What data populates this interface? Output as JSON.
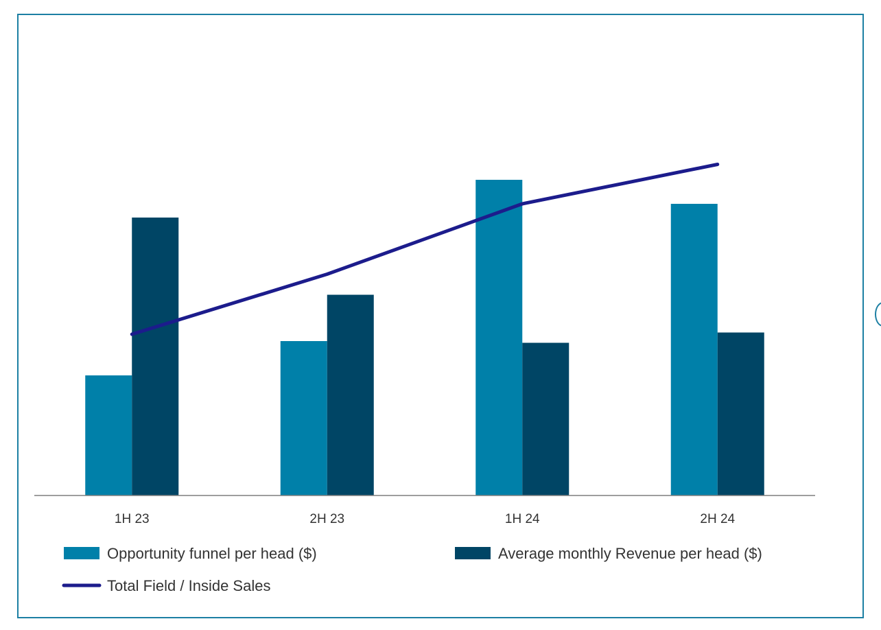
{
  "chart_data": {
    "type": "bar",
    "categories": [
      "1H 23",
      "2H 23",
      "1H 24",
      "2H 24"
    ],
    "series": [
      {
        "name": "Opportunity funnel per head ($)",
        "kind": "bar",
        "color": "#0080a9",
        "values": [
          35,
          45,
          92,
          85
        ]
      },
      {
        "name": "Average monthly Revenue per head ($)",
        "kind": "bar",
        "color": "#004565",
        "values": [
          81,
          58.5,
          44.5,
          47.5
        ]
      },
      {
        "name": "Total Field / Inside Sales",
        "kind": "line",
        "color": "#1c1c8c",
        "values": [
          47,
          64.5,
          85,
          96.5
        ]
      }
    ],
    "title": "",
    "xlabel": "",
    "ylabel": "",
    "ylim": [
      0,
      120
    ],
    "grid": false,
    "y_axis_visible": false,
    "legend_position": "bottom"
  }
}
